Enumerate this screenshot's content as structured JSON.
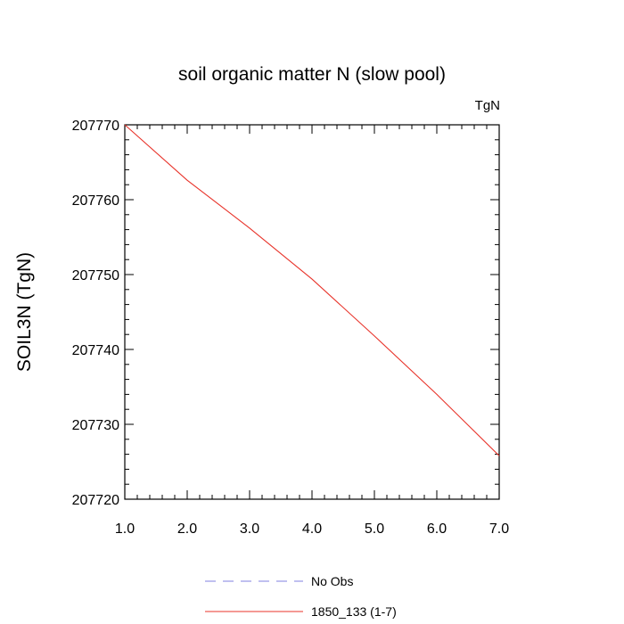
{
  "chart_data": {
    "type": "line",
    "title": "soil organic matter N (slow pool)",
    "units": "TgN",
    "ylabel": "SOIL3N  (TgN)",
    "xlabel": "",
    "xlim": [
      1.0,
      7.0
    ],
    "ylim": [
      207720,
      207770
    ],
    "xticks": [
      1.0,
      2.0,
      3.0,
      4.0,
      5.0,
      6.0,
      7.0
    ],
    "xtick_labels": [
      "1.0",
      "2.0",
      "3.0",
      "4.0",
      "5.0",
      "6.0",
      "7.0"
    ],
    "yticks": [
      207720,
      207730,
      207740,
      207750,
      207760,
      207770
    ],
    "ytick_labels": [
      "207720",
      "207730",
      "207740",
      "207750",
      "207760",
      "207770"
    ],
    "grid": false,
    "legend_position": "bottom",
    "series": [
      {
        "name": "No Obs",
        "color": "#8080e0",
        "dash": true,
        "x": [],
        "y": []
      },
      {
        "name": "1850_133 (1-7)",
        "color": "#e8332a",
        "dash": false,
        "x": [
          1,
          2,
          3,
          4,
          5,
          6,
          7
        ],
        "y": [
          207770.0,
          207762.6,
          207756.2,
          207749.4,
          207741.8,
          207734.0,
          207725.8
        ]
      }
    ]
  }
}
